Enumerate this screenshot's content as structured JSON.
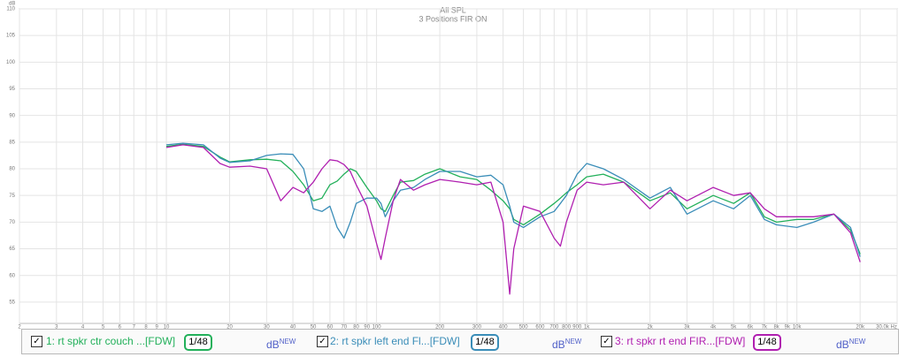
{
  "chart_data": {
    "type": "line",
    "title": "All SPL",
    "subtitle": "3 Positions FIR ON",
    "y_label": "dB",
    "log_x": true,
    "grid": true,
    "xlim": [
      2,
      30000
    ],
    "ylim": [
      51,
      110
    ],
    "yticks": [
      55,
      60,
      65,
      70,
      75,
      80,
      85,
      90,
      95,
      100,
      105,
      110
    ],
    "xticks": [
      2,
      3,
      4,
      5,
      6,
      7,
      8,
      9,
      10,
      20,
      30,
      40,
      50,
      60,
      70,
      80,
      90,
      100,
      200,
      300,
      400,
      500,
      600,
      700,
      800,
      900,
      {
        "value": 1000,
        "label": "1k"
      },
      {
        "value": 2000,
        "label": "2k"
      },
      {
        "value": 3000,
        "label": "3k"
      },
      {
        "value": 4000,
        "label": "4k"
      },
      {
        "value": 5000,
        "label": "5k"
      },
      {
        "value": 6000,
        "label": "6k"
      },
      {
        "value": 7000,
        "label": "7k"
      },
      {
        "value": 8000,
        "label": "8k"
      },
      {
        "value": 9000,
        "label": "9k"
      },
      {
        "value": 10000,
        "label": "10k"
      },
      {
        "value": 20000,
        "label": "20k"
      },
      {
        "value": 30000,
        "label": "30.0k Hz"
      }
    ],
    "x": [
      10,
      12,
      15,
      18,
      20,
      25,
      30,
      35,
      40,
      45,
      50,
      55,
      60,
      65,
      70,
      75,
      80,
      90,
      100,
      105,
      110,
      120,
      130,
      150,
      170,
      200,
      250,
      300,
      350,
      400,
      430,
      450,
      500,
      600,
      700,
      750,
      800,
      900,
      1000,
      1200,
      1500,
      2000,
      2500,
      3000,
      4000,
      5000,
      6000,
      7000,
      8000,
      10000,
      12000,
      15000,
      18000,
      20000
    ],
    "series": [
      {
        "name": "1: rt spkr ctr couch ...[FDW]",
        "color": "#22b05a",
        "smoothing": "1/48",
        "unit_label": "dB",
        "unit_badge": "NEW",
        "values": [
          84.2,
          84.6,
          84.2,
          82.2,
          81.3,
          81.7,
          81.8,
          81.5,
          79.5,
          77,
          74,
          74.5,
          77,
          77.7,
          79,
          80,
          79.5,
          76.5,
          74,
          72.5,
          72,
          75,
          77.5,
          77.8,
          79,
          80,
          78.5,
          78,
          76,
          74,
          72.5,
          70.5,
          69.5,
          71.5,
          73.5,
          74.5,
          75.5,
          77,
          78.5,
          79,
          77.5,
          74,
          75.5,
          72.5,
          75,
          73.5,
          75.5,
          71,
          70,
          70.5,
          70.5,
          71.5,
          68.5,
          64
        ]
      },
      {
        "name": "2: rt spkr left end Fl...[FDW]",
        "color": "#3a8db8",
        "smoothing": "1/48",
        "unit_label": "dB",
        "unit_badge": "NEW",
        "values": [
          84.5,
          84.8,
          84.5,
          82,
          81.2,
          81.5,
          82.5,
          82.8,
          82.7,
          80,
          72.5,
          72,
          73,
          69,
          67,
          70,
          73.5,
          74.5,
          74.5,
          73.5,
          71,
          74,
          76,
          76.5,
          78,
          79.5,
          79.5,
          78.5,
          78.8,
          77,
          73,
          70,
          69,
          71,
          72,
          73.5,
          75,
          79,
          81,
          80,
          78,
          74.5,
          76.5,
          71.5,
          74,
          72.5,
          75,
          70.5,
          69.5,
          69,
          70,
          71.5,
          69,
          63.5
        ]
      },
      {
        "name": "3: rt spkr rt end FIR...[FDW]",
        "color": "#b01fb0",
        "smoothing": "1/48",
        "unit_label": "dB",
        "unit_badge": "NEW",
        "values": [
          84,
          84.5,
          84,
          81,
          80.3,
          80.5,
          80,
          74,
          76.5,
          75.5,
          77.5,
          80,
          81.7,
          81.5,
          80.8,
          79.5,
          77,
          73,
          66,
          63,
          67,
          74,
          78,
          76,
          77,
          78,
          77.5,
          77,
          77.5,
          70,
          56.5,
          65,
          73,
          72,
          67,
          65.5,
          70,
          76,
          77.5,
          77,
          77.5,
          72.5,
          76,
          74,
          76.5,
          75,
          75.5,
          72.5,
          71,
          71,
          71,
          71.5,
          68,
          62.5
        ]
      }
    ]
  }
}
